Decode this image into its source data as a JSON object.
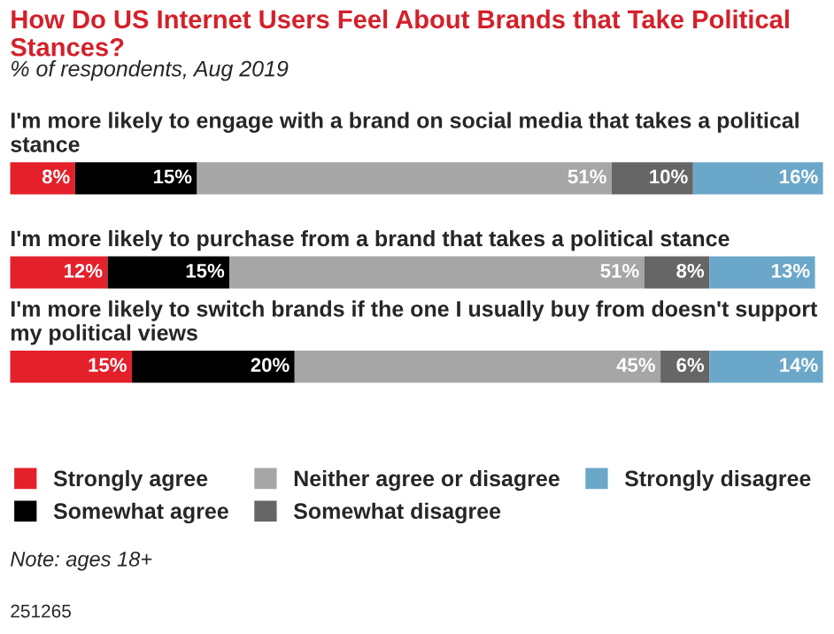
{
  "chart_data": {
    "type": "bar",
    "orientation": "horizontal",
    "stacked": true,
    "relative": false,
    "title": "How Do US Internet Users Feel About Brands that Take Political Stances?",
    "subtitle": "% of respondents, Aug 2019",
    "categories": [
      "I'm more likely to engage with a brand on social media that takes a political stance",
      "I'm more likely to purchase from a brand that takes a political stance",
      "I'm more likely to switch brands if the one I usually buy from doesn't support my political views"
    ],
    "series": [
      {
        "name": "Strongly agree",
        "color": "#e4202a",
        "values": [
          8,
          12,
          15
        ],
        "value_labels": [
          "8%",
          "12%",
          "15%"
        ]
      },
      {
        "name": "Somewhat agree",
        "color": "#000000",
        "values": [
          15,
          15,
          20
        ],
        "value_labels": [
          "15%",
          "15%",
          "20%"
        ]
      },
      {
        "name": "Neither agree or disagree",
        "color": "#a6a6a6",
        "values": [
          51,
          51,
          45
        ],
        "value_labels": [
          "51%",
          "51%",
          "45%"
        ]
      },
      {
        "name": "Somewhat disagree",
        "color": "#666666",
        "values": [
          10,
          8,
          6
        ],
        "value_labels": [
          "10%",
          "8%",
          "6%"
        ]
      },
      {
        "name": "Strongly disagree",
        "color": "#6ba7c9",
        "values": [
          16,
          13,
          14
        ],
        "value_labels": [
          "16%",
          "13%",
          "14%"
        ]
      }
    ],
    "legend": "bottom",
    "tick_labels": false,
    "annotations": [
      "Note: ages 18+",
      "251265"
    ]
  }
}
